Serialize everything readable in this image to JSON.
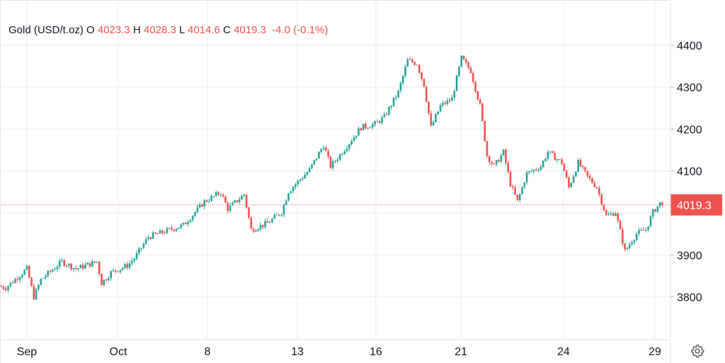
{
  "legend": {
    "symbol": "Gold (USD/t.oz)",
    "open_label": "O",
    "open": "4023.3",
    "high_label": "H",
    "high": "4028.3",
    "low_label": "L",
    "low": "4014.6",
    "close_label": "C",
    "close": "4019.3",
    "change": "-4.0 (-0.1%)"
  },
  "colors": {
    "up": "#26a69a",
    "down": "#ef5350",
    "grid": "#f0f3fa",
    "text": "#131722"
  },
  "chart_data": {
    "type": "candlestick",
    "title": "Gold (USD/t.oz)",
    "ylim": [
      3710,
      4480
    ],
    "xlim": [
      0,
      287
    ],
    "y_ticks": [
      3800,
      3900,
      4000,
      4100,
      4200,
      4300,
      4400
    ],
    "y_tick_labels": [
      "3800",
      "3900",
      "",
      "4100",
      "4200",
      "4300",
      "4400"
    ],
    "x_ticks": [
      {
        "t": 11.5,
        "label": "Sep"
      },
      {
        "t": 50.6,
        "label": "Oct"
      },
      {
        "t": 88.8,
        "label": "8"
      },
      {
        "t": 127.3,
        "label": "13"
      },
      {
        "t": 160.9,
        "label": "16"
      },
      {
        "t": 197.3,
        "label": "21"
      },
      {
        "t": 241.2,
        "label": "24"
      },
      {
        "t": 280.3,
        "label": "29"
      }
    ],
    "last_price": 4019.3,
    "last_price_label": "4019.3",
    "close_path": [
      [
        0,
        3825
      ],
      [
        3,
        3822
      ],
      [
        12,
        3867
      ],
      [
        15,
        3800
      ],
      [
        18,
        3841
      ],
      [
        27,
        3884
      ],
      [
        33,
        3867
      ],
      [
        42,
        3884
      ],
      [
        44,
        3833
      ],
      [
        48,
        3858
      ],
      [
        55,
        3875
      ],
      [
        58,
        3892
      ],
      [
        64,
        3943
      ],
      [
        70,
        3954
      ],
      [
        79,
        3971
      ],
      [
        88,
        4027
      ],
      [
        95,
        4049
      ],
      [
        98,
        4010
      ],
      [
        105,
        4044
      ],
      [
        108,
        3960
      ],
      [
        115,
        3976
      ],
      [
        121,
        4002
      ],
      [
        124,
        4052
      ],
      [
        133,
        4103
      ],
      [
        139,
        4162
      ],
      [
        142,
        4111
      ],
      [
        148,
        4153
      ],
      [
        155,
        4204
      ],
      [
        161,
        4212
      ],
      [
        165,
        4229
      ],
      [
        171,
        4288
      ],
      [
        175,
        4364
      ],
      [
        179,
        4356
      ],
      [
        182,
        4305
      ],
      [
        185,
        4204
      ],
      [
        189,
        4255
      ],
      [
        194,
        4272
      ],
      [
        198,
        4369
      ],
      [
        202,
        4339
      ],
      [
        206,
        4255
      ],
      [
        209,
        4137
      ],
      [
        212,
        4111
      ],
      [
        216,
        4145
      ],
      [
        219,
        4069
      ],
      [
        222,
        4027
      ],
      [
        226,
        4094
      ],
      [
        232,
        4111
      ],
      [
        235,
        4145
      ],
      [
        241,
        4120
      ],
      [
        244,
        4061
      ],
      [
        248,
        4120
      ],
      [
        252,
        4086
      ],
      [
        256,
        4061
      ],
      [
        260,
        3993
      ],
      [
        264,
        4002
      ],
      [
        268,
        3909
      ],
      [
        273,
        3951
      ],
      [
        277,
        3960
      ],
      [
        280,
        4002
      ],
      [
        283,
        4023
      ],
      [
        284,
        4019.3
      ]
    ]
  }
}
